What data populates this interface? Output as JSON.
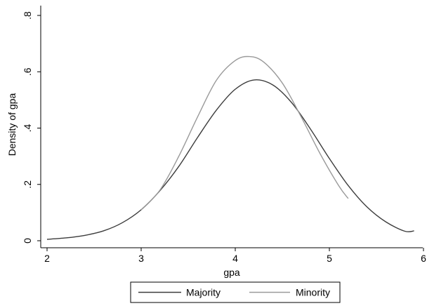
{
  "chart_data": {
    "type": "line",
    "title": "",
    "xlabel": "gpa",
    "ylabel": "Density of gpa",
    "xlim": [
      2,
      6
    ],
    "ylim": [
      0,
      0.8
    ],
    "x_ticks": [
      2,
      3,
      4,
      5,
      6
    ],
    "x_tick_labels": [
      "2",
      "3",
      "4",
      "5",
      "6"
    ],
    "y_ticks": [
      0,
      0.2,
      0.4,
      0.6,
      0.8
    ],
    "y_tick_labels": [
      "0",
      ".2",
      ".4",
      ".6",
      ".8"
    ],
    "grid": false,
    "legend_position": "bottom",
    "series": [
      {
        "name": "Majority",
        "color": "#3c3c3c",
        "x": [
          2.0,
          2.2,
          2.4,
          2.6,
          2.8,
          3.0,
          3.2,
          3.4,
          3.6,
          3.8,
          4.0,
          4.2,
          4.4,
          4.6,
          4.8,
          5.0,
          5.2,
          5.4,
          5.6,
          5.8,
          5.9
        ],
        "y": [
          0.005,
          0.01,
          0.019,
          0.035,
          0.064,
          0.11,
          0.178,
          0.264,
          0.367,
          0.464,
          0.538,
          0.571,
          0.553,
          0.49,
          0.396,
          0.292,
          0.196,
          0.12,
          0.067,
          0.034,
          0.035
        ]
      },
      {
        "name": "Minority",
        "color": "#9a9a9a",
        "x": [
          3.0,
          3.2,
          3.4,
          3.6,
          3.8,
          4.0,
          4.15,
          4.3,
          4.5,
          4.7,
          4.9,
          5.1,
          5.2
        ],
        "y": [
          0.11,
          0.18,
          0.3,
          0.44,
          0.57,
          0.64,
          0.654,
          0.635,
          0.56,
          0.44,
          0.31,
          0.195,
          0.15
        ]
      }
    ]
  }
}
